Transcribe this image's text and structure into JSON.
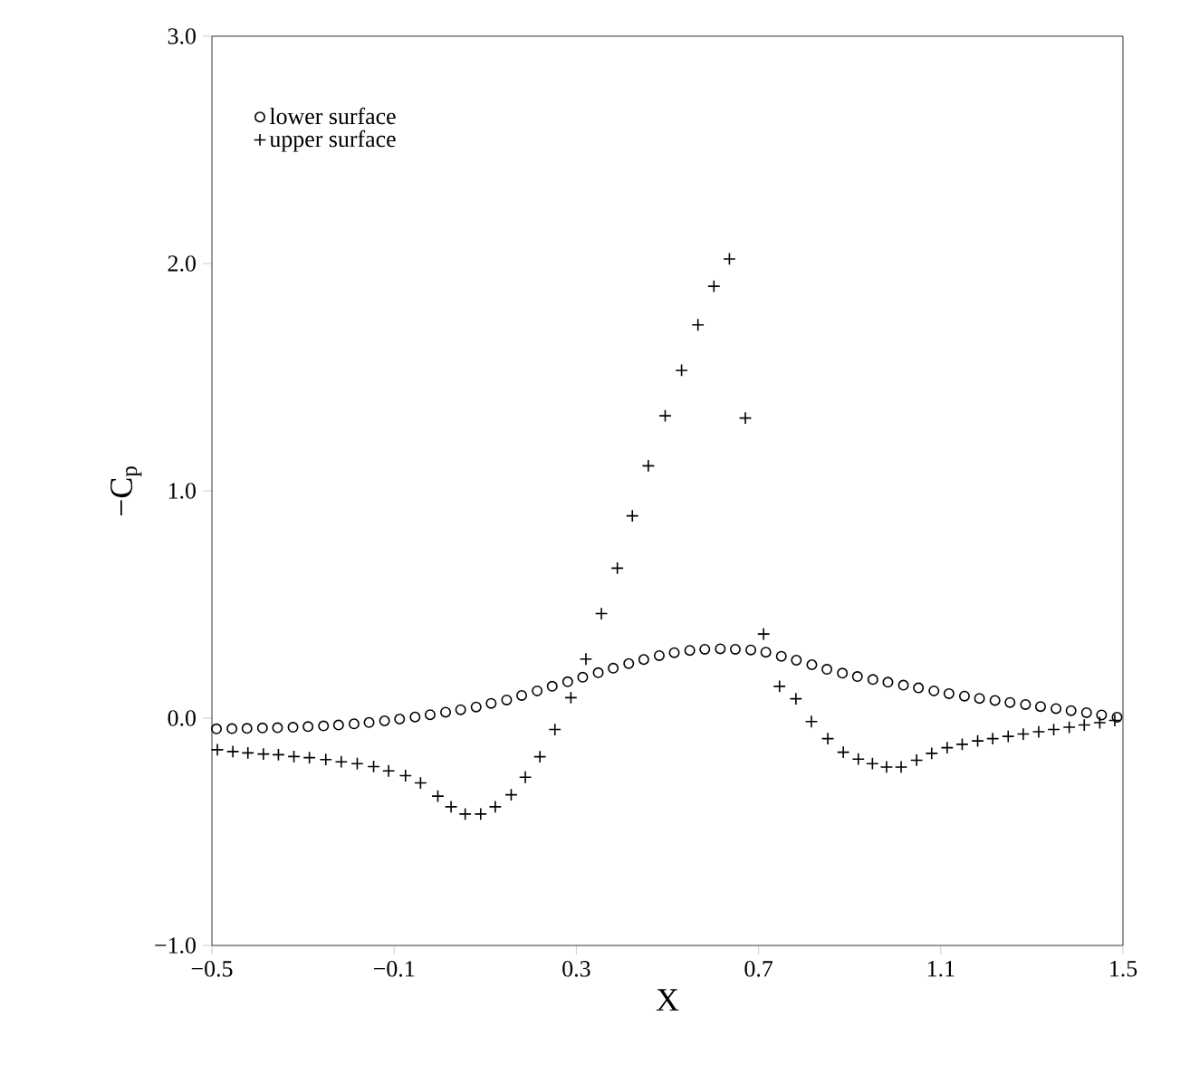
{
  "chart_data": {
    "type": "scatter",
    "xlabel": "X",
    "ylabel": "−C$_{p}$",
    "xlim": [
      -0.5,
      1.5
    ],
    "ylim": [
      -1.0,
      3.0
    ],
    "xticks": [
      {
        "value": -0.5,
        "label": "−0.5"
      },
      {
        "value": -0.1,
        "label": "−0.1"
      },
      {
        "value": 0.3,
        "label": "0.3"
      },
      {
        "value": 0.7,
        "label": "0.7"
      },
      {
        "value": 1.1,
        "label": "1.1"
      },
      {
        "value": 1.5,
        "label": "1.5"
      }
    ],
    "yticks": [
      {
        "value": -1.0,
        "label": "−1.0"
      },
      {
        "value": 0.0,
        "label": "0.0"
      },
      {
        "value": 1.0,
        "label": "1.0"
      },
      {
        "value": 2.0,
        "label": "2.0"
      },
      {
        "value": 3.0,
        "label": "3.0"
      }
    ],
    "legend": "top left",
    "grid": false,
    "series": [
      {
        "name": "lower surface",
        "color": "#000000",
        "marker": "circle",
        "x": [
          -0.49,
          -0.456,
          -0.423,
          -0.389,
          -0.356,
          -0.322,
          -0.289,
          -0.255,
          -0.222,
          -0.188,
          -0.155,
          -0.121,
          -0.088,
          -0.054,
          -0.021,
          0.013,
          0.046,
          0.08,
          0.113,
          0.147,
          0.18,
          0.214,
          0.247,
          0.281,
          0.314,
          0.348,
          0.381,
          0.415,
          0.448,
          0.482,
          0.515,
          0.549,
          0.582,
          0.616,
          0.649,
          0.683,
          0.716,
          0.75,
          0.783,
          0.817,
          0.85,
          0.884,
          0.917,
          0.951,
          0.984,
          1.018,
          1.051,
          1.085,
          1.118,
          1.152,
          1.185,
          1.219,
          1.252,
          1.286,
          1.319,
          1.353,
          1.386,
          1.42,
          1.453,
          1.487
        ],
        "values": [
          -0.047,
          -0.046,
          -0.045,
          -0.043,
          -0.042,
          -0.04,
          -0.037,
          -0.034,
          -0.03,
          -0.025,
          -0.019,
          -0.012,
          -0.004,
          0.005,
          0.015,
          0.026,
          0.037,
          0.049,
          0.065,
          0.08,
          0.1,
          0.12,
          0.14,
          0.16,
          0.18,
          0.2,
          0.22,
          0.24,
          0.258,
          0.275,
          0.288,
          0.298,
          0.303,
          0.305,
          0.303,
          0.3,
          0.29,
          0.272,
          0.255,
          0.235,
          0.215,
          0.198,
          0.183,
          0.17,
          0.158,
          0.145,
          0.133,
          0.12,
          0.108,
          0.097,
          0.087,
          0.078,
          0.069,
          0.06,
          0.051,
          0.042,
          0.033,
          0.024,
          0.014,
          0.004
        ]
      },
      {
        "name": "upper surface",
        "color": "#000000",
        "marker": "cross",
        "x": [
          -0.488,
          -0.454,
          -0.421,
          -0.387,
          -0.354,
          -0.32,
          -0.286,
          -0.25,
          -0.216,
          -0.181,
          -0.145,
          -0.112,
          -0.075,
          -0.042,
          -0.004,
          0.025,
          0.056,
          0.09,
          0.122,
          0.157,
          0.188,
          0.22,
          0.253,
          0.288,
          0.321,
          0.355,
          0.39,
          0.423,
          0.458,
          0.495,
          0.531,
          0.567,
          0.602,
          0.636,
          0.671,
          0.711,
          0.746,
          0.782,
          0.816,
          0.852,
          0.886,
          0.919,
          0.95,
          0.981,
          1.013,
          1.047,
          1.08,
          1.114,
          1.147,
          1.181,
          1.214,
          1.248,
          1.281,
          1.315,
          1.348,
          1.382,
          1.415,
          1.449,
          1.482
        ],
        "values": [
          -0.139,
          -0.147,
          -0.153,
          -0.158,
          -0.161,
          -0.169,
          -0.174,
          -0.182,
          -0.192,
          -0.2,
          -0.213,
          -0.232,
          -0.253,
          -0.285,
          -0.343,
          -0.39,
          -0.422,
          -0.422,
          -0.39,
          -0.337,
          -0.26,
          -0.17,
          -0.05,
          0.09,
          0.26,
          0.46,
          0.66,
          0.89,
          1.11,
          1.33,
          1.53,
          1.73,
          1.9,
          2.02,
          1.32,
          0.37,
          0.14,
          0.085,
          -0.015,
          -0.09,
          -0.15,
          -0.18,
          -0.2,
          -0.215,
          -0.215,
          -0.185,
          -0.155,
          -0.13,
          -0.115,
          -0.1,
          -0.09,
          -0.08,
          -0.07,
          -0.06,
          -0.05,
          -0.04,
          -0.03,
          -0.02,
          -0.01
        ]
      }
    ]
  }
}
